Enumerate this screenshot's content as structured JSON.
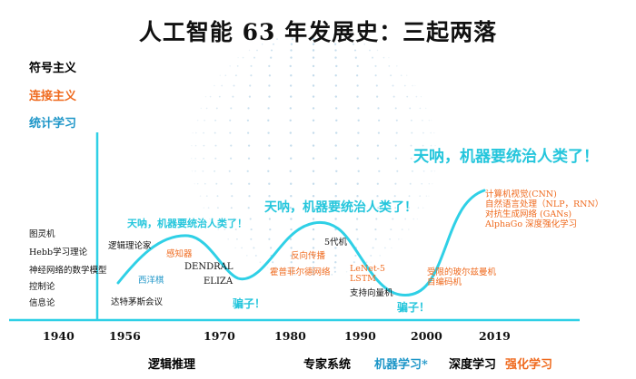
{
  "title": "人工智能 63 年发展史：三起两落",
  "legend": [
    {
      "label": "符号主义",
      "color": "#111111"
    },
    {
      "label": "连接主义",
      "color": "#ef6a1e"
    },
    {
      "label": "统计学习",
      "color": "#1e96c8"
    }
  ],
  "years": [
    "1940",
    "1956",
    "1970",
    "1980",
    "1990",
    "2000",
    "2019"
  ],
  "eras": {
    "logic": "逻辑推理",
    "expert": "专家系统",
    "ml": "机器学习*",
    "dl": "深度学习",
    "rl": "强化学习"
  },
  "era_colors": {
    "ml": "#1e96c8",
    "rl": "#ef6a1e"
  },
  "pre_labels": [
    "图灵机",
    "Hebb学习理论",
    "神经网络的数学模型",
    "控制论",
    "信息论"
  ],
  "events": {
    "dartmouth": "达特茅斯会议",
    "perceptron_w": "西洋棋",
    "logic_theorist": "逻辑理论家",
    "perceptron": "感知器",
    "dendral": "DENDRAL",
    "eliza": "ELIZA",
    "backprop": "反向传播",
    "hopfield": "霍普菲尔德网络",
    "fifth_gen": "5代机",
    "lenet": "LeNet-5",
    "lstm": "LSTM",
    "svm": "支持向量机",
    "rbm": "受限的玻尔兹曼机",
    "autoencoder": "自编码机",
    "cnn": "计算机视觉(CNN)",
    "nlp": "自然语言处理（NLP，RNN）",
    "gan": "对抗生成网络 (GANs)",
    "alphago": "AlphaGo 深度强化学习"
  },
  "exclaims": {
    "first": "天呐，机器要统治人类了！",
    "second": "天呐，机器要统治人类了！",
    "third": "天呐，机器要统治人类了！",
    "liar1": "骗子！",
    "liar2": "骗子！"
  },
  "colors": {
    "curve": "#2fd0e6",
    "axis": "#2fd0e6",
    "orange": "#ef6a1e",
    "blue": "#1e96c8"
  }
}
